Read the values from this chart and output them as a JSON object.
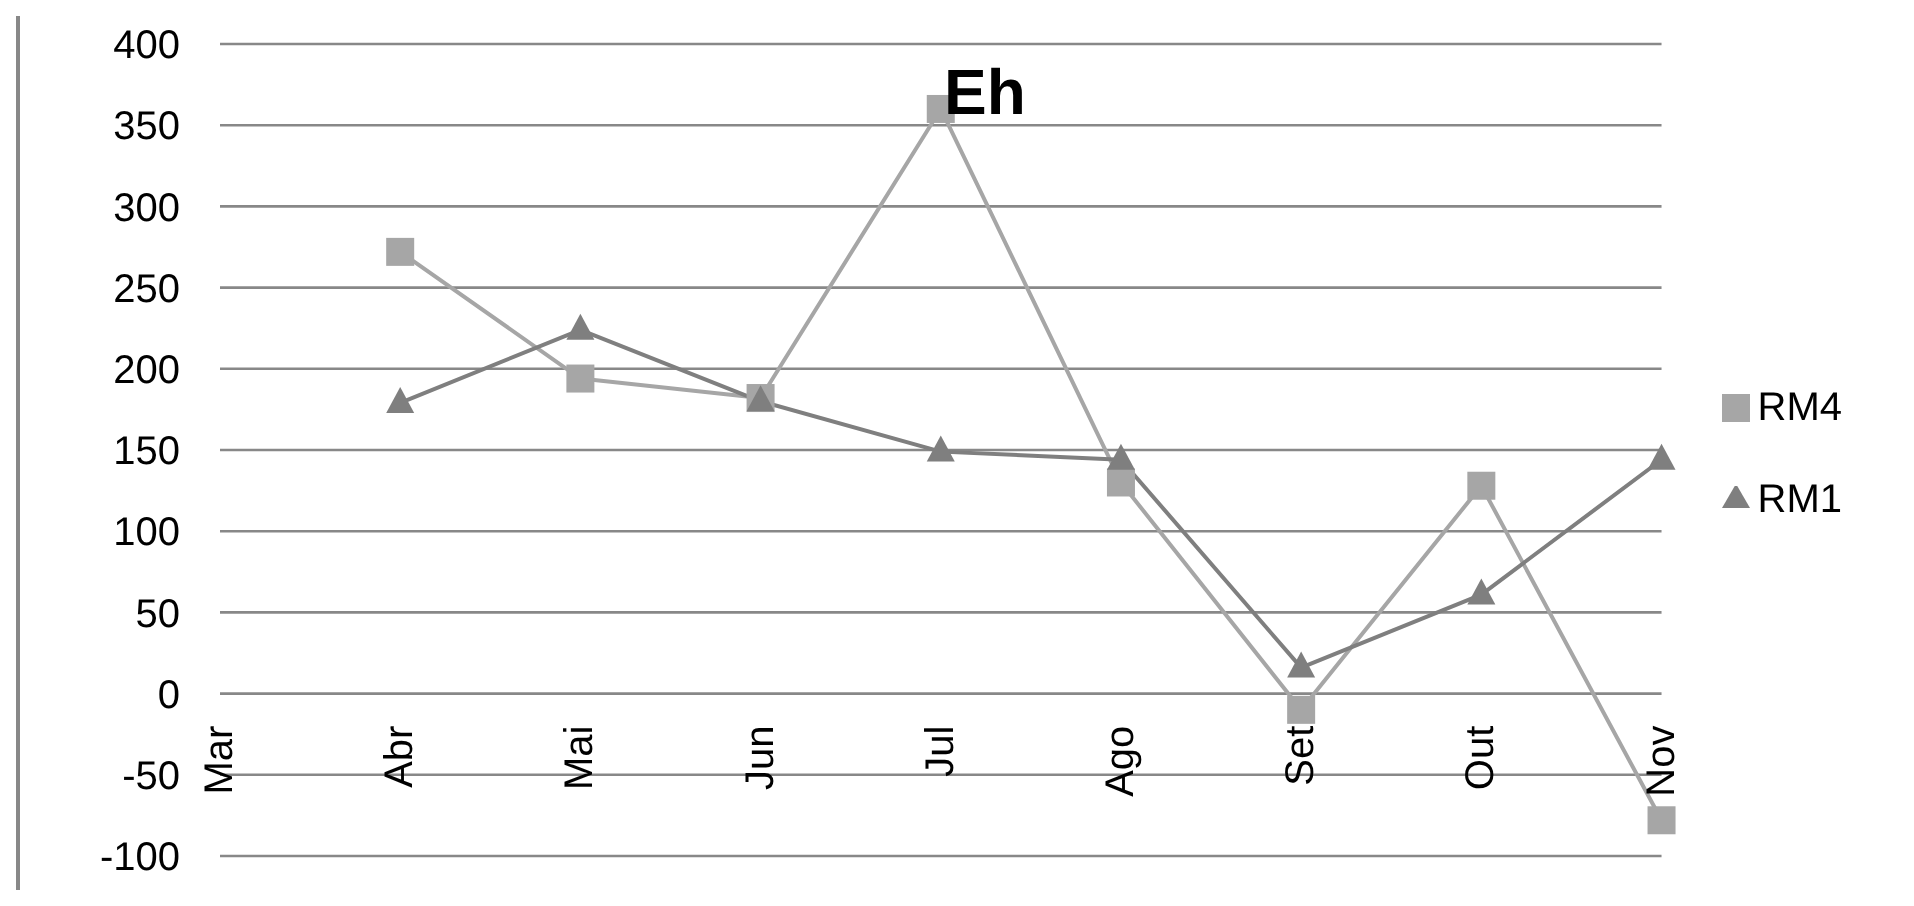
{
  "chart_data": {
    "type": "line",
    "title": "Eh",
    "categories": [
      "Mar",
      "Abr",
      "Mai",
      "Jun",
      "Jul",
      "Ago",
      "Set",
      "Out",
      "Nov"
    ],
    "series": [
      {
        "name": "RM4",
        "color": "#a6a6a6",
        "marker": "square",
        "values": [
          null,
          272,
          194,
          182,
          360,
          130,
          -10,
          128,
          -78
        ]
      },
      {
        "name": "RM1",
        "color": "#7f7f7f",
        "marker": "triangle",
        "values": [
          null,
          179,
          224,
          180,
          149,
          144,
          16,
          61,
          144
        ]
      }
    ],
    "ylim": [
      -100,
      400
    ],
    "yticks": [
      -100,
      -50,
      0,
      50,
      100,
      150,
      200,
      250,
      300,
      350,
      400
    ],
    "grid": "y",
    "legend": "right"
  }
}
